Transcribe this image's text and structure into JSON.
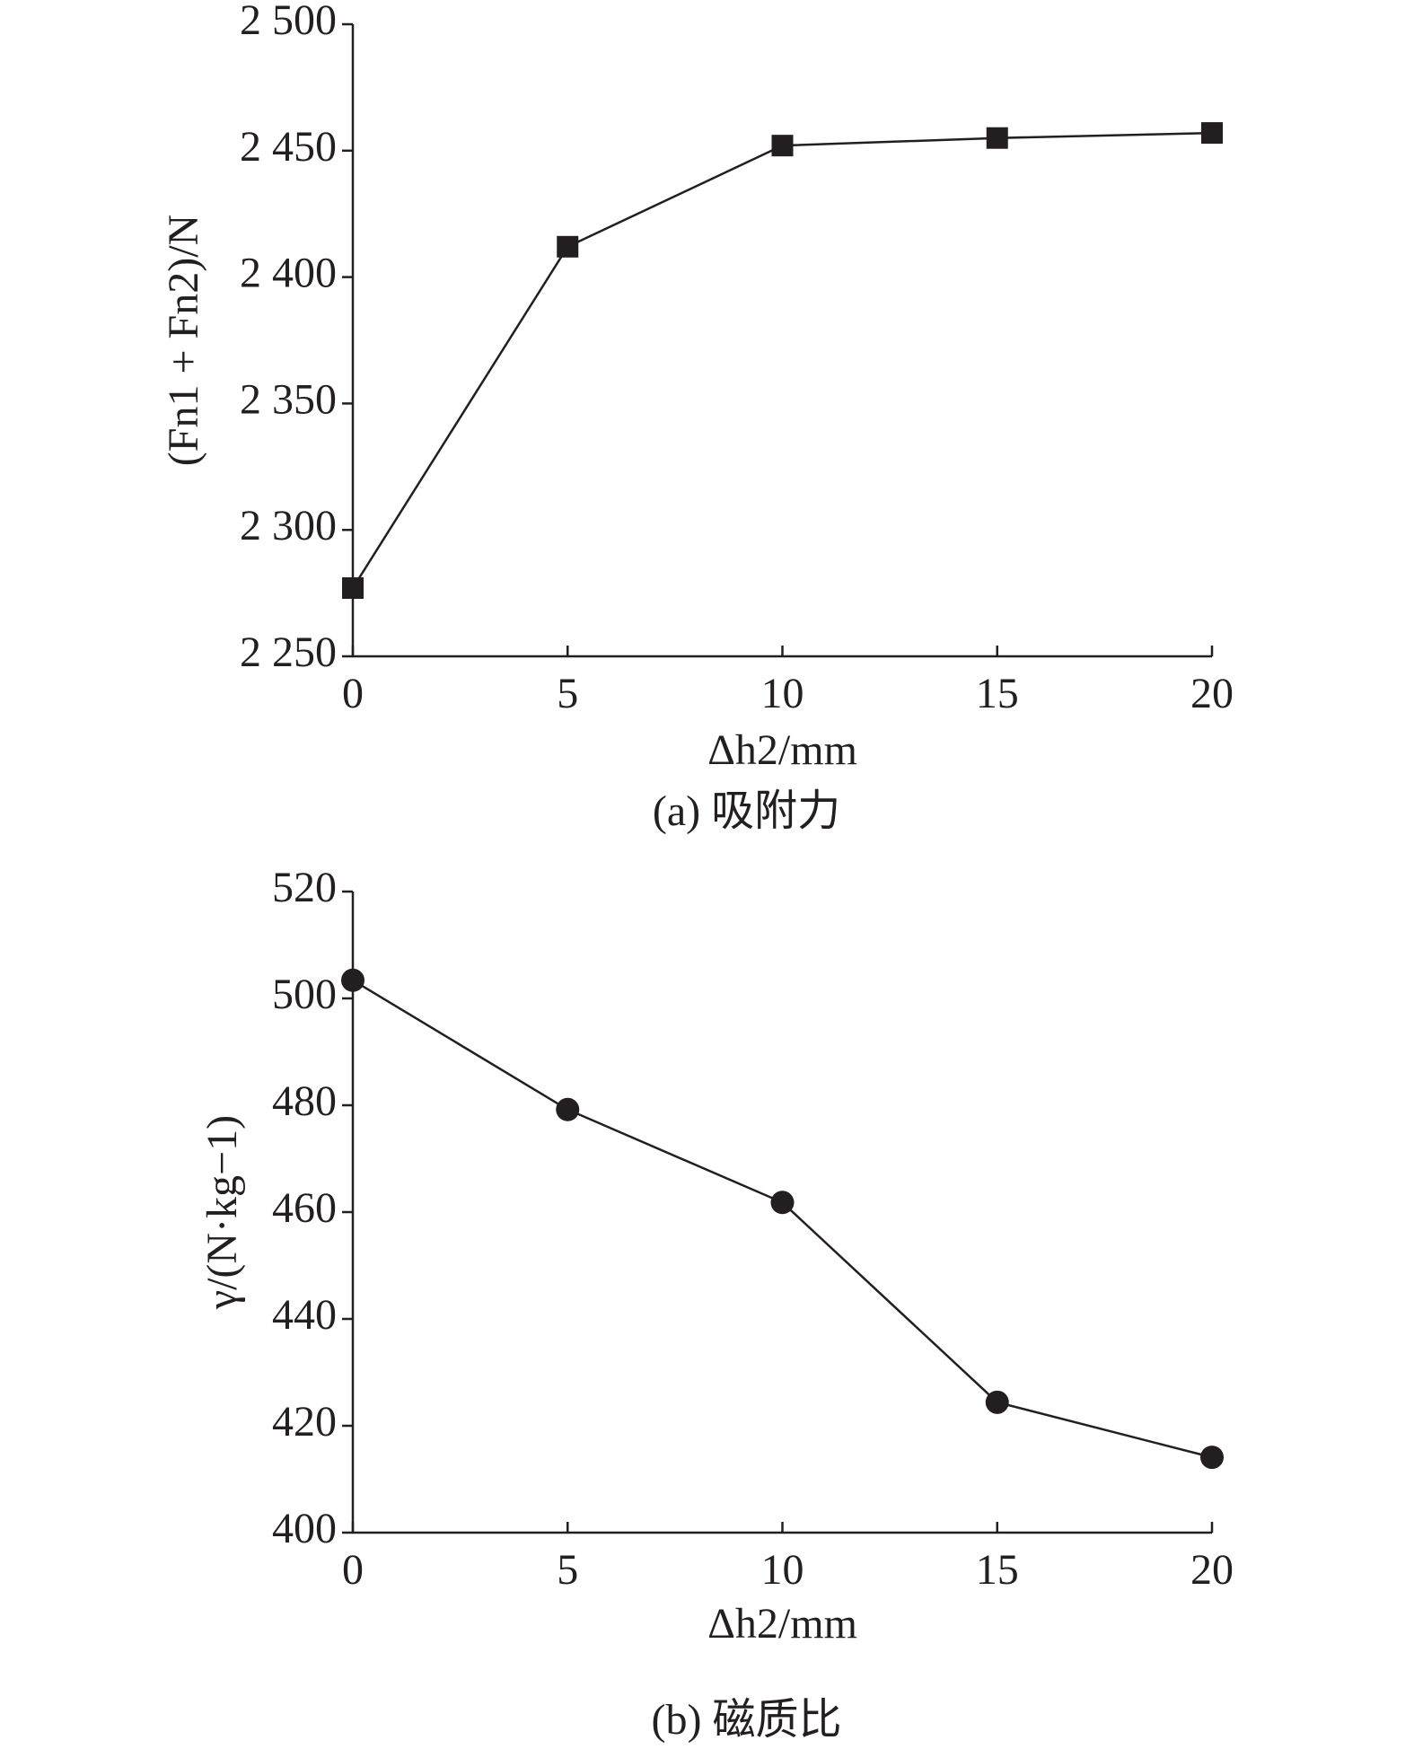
{
  "chart_data": [
    {
      "type": "line",
      "caption": "(a) 吸附力",
      "xlabel": "Δh2/mm",
      "ylabel": "(Fn1 + Fn2)/N",
      "x": [
        0,
        5,
        10,
        15,
        20
      ],
      "marker": "square",
      "color": "#231f20",
      "series": [
        {
          "values": [
            2277,
            2412,
            2452,
            2455,
            2457
          ]
        }
      ],
      "xlim": [
        0,
        20
      ],
      "xticks": [
        0,
        5,
        10,
        15,
        20
      ],
      "ylim": [
        2250,
        2500
      ],
      "yticks": [
        {
          "value": 2250,
          "label": "2 250"
        },
        {
          "value": 2300,
          "label": "2 300"
        },
        {
          "value": 2350,
          "label": "2 350"
        },
        {
          "value": 2400,
          "label": "2 400"
        },
        {
          "value": 2450,
          "label": "2 450"
        },
        {
          "value": 2500,
          "label": "2 500"
        }
      ]
    },
    {
      "type": "line",
      "caption": "(b) 磁质比",
      "xlabel": "Δh2/mm",
      "ylabel": "γ/(N·kg−1)",
      "x": [
        0,
        5,
        10,
        15,
        20
      ],
      "marker": "circle",
      "color": "#231f20",
      "series": [
        {
          "values": [
            503.4,
            479.2,
            461.8,
            424.4,
            414.1
          ]
        }
      ],
      "xlim": [
        0,
        20
      ],
      "xticks": [
        0,
        5,
        10,
        15,
        20
      ],
      "ylim": [
        400,
        520
      ],
      "yticks": [
        400,
        420,
        440,
        460,
        480,
        500,
        520
      ]
    }
  ]
}
